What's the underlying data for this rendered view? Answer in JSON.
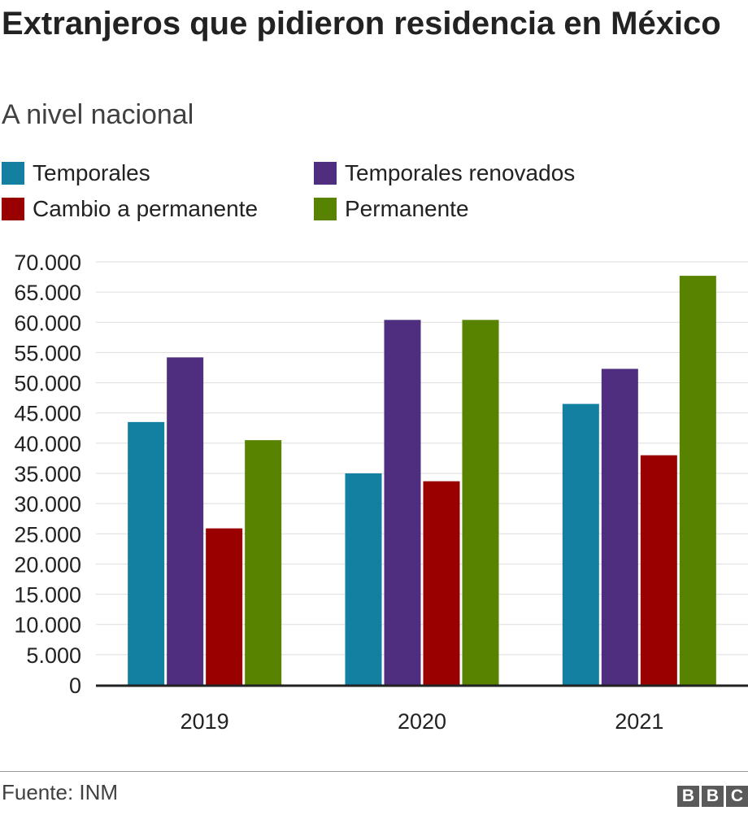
{
  "chart_data": {
    "type": "bar",
    "title": "Extranjeros que pidieron residencia en México",
    "subtitle": "A nivel nacional",
    "categories": [
      "2019",
      "2020",
      "2021"
    ],
    "series": [
      {
        "name": "Temporales",
        "color": "#1380a1",
        "values": [
          43500,
          35000,
          46500
        ]
      },
      {
        "name": "Temporales renovados",
        "color": "#4f2d7f",
        "values": [
          54200,
          60400,
          52300
        ]
      },
      {
        "name": "Cambio a permanente",
        "color": "#990000",
        "values": [
          25900,
          33700,
          38000
        ]
      },
      {
        "name": "Permanente",
        "color": "#588300",
        "values": [
          40500,
          60400,
          67700
        ]
      }
    ],
    "ylim": [
      0,
      70000
    ],
    "yticks": [
      0,
      5000,
      10000,
      15000,
      20000,
      25000,
      30000,
      35000,
      40000,
      45000,
      50000,
      55000,
      60000,
      65000,
      70000
    ],
    "ytick_labels": [
      "0",
      "5.000",
      "10.000",
      "15.000",
      "20.000",
      "25.000",
      "30.000",
      "35.000",
      "40.000",
      "45.000",
      "50.000",
      "55.000",
      "60.000",
      "65.000",
      "70.000"
    ],
    "xlabel": "",
    "ylabel": "",
    "grid": true,
    "legend_position": "top"
  },
  "footer": {
    "source": "Fuente: INM",
    "logo_letters": [
      "B",
      "B",
      "C"
    ]
  }
}
